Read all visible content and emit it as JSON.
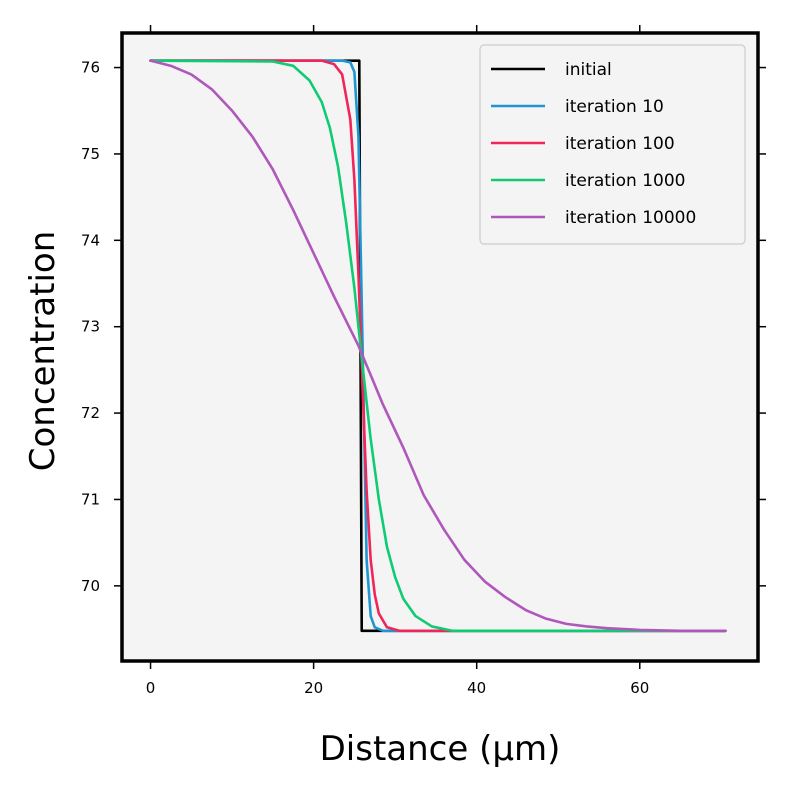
{
  "chart_data": {
    "type": "line",
    "xlabel": "Distance (μm)",
    "ylabel": "Concentration",
    "xlim": [
      -3.5,
      74.5
    ],
    "ylim": [
      69.13,
      76.4
    ],
    "xticks": [
      0,
      20,
      40,
      60
    ],
    "yticks": [
      70,
      71,
      72,
      73,
      74,
      75,
      76
    ],
    "grid": false,
    "legend_position": "top-right",
    "background": "#f4f4f4",
    "series": [
      {
        "name": "initial",
        "color": "#000000",
        "x": [
          0,
          25.5,
          25.6,
          25.9,
          26.0,
          70.5
        ],
        "y": [
          76.08,
          76.08,
          76.08,
          69.48,
          69.48,
          69.48
        ]
      },
      {
        "name": "iteration 10",
        "color": "#1f96d2",
        "x": [
          0,
          23.5,
          24.5,
          25.0,
          25.5,
          26.0,
          26.5,
          27.0,
          27.5,
          28.5,
          70.5
        ],
        "y": [
          76.08,
          76.08,
          76.06,
          75.95,
          75.2,
          72.8,
          70.3,
          69.65,
          69.52,
          69.48,
          69.48
        ]
      },
      {
        "name": "iteration 100",
        "color": "#f0265a",
        "x": [
          0,
          21.0,
          22.5,
          23.5,
          24.5,
          25.0,
          25.5,
          26.0,
          26.5,
          27.0,
          27.5,
          28.0,
          29.0,
          30.5,
          70.5
        ],
        "y": [
          76.08,
          76.08,
          76.04,
          75.92,
          75.4,
          74.7,
          73.6,
          72.3,
          71.1,
          70.3,
          69.9,
          69.68,
          69.52,
          69.48,
          69.48
        ]
      },
      {
        "name": "iteration 1000",
        "color": "#0fcc73",
        "x": [
          0,
          15.0,
          17.5,
          19.5,
          21.0,
          22.0,
          23.0,
          24.0,
          25.0,
          26.0,
          27.0,
          28.0,
          29.0,
          30.0,
          31.0,
          32.5,
          34.5,
          37.0,
          70.5
        ],
        "y": [
          76.08,
          76.07,
          76.02,
          75.85,
          75.6,
          75.3,
          74.85,
          74.2,
          73.45,
          72.55,
          71.7,
          71.0,
          70.45,
          70.1,
          69.85,
          69.65,
          69.53,
          69.48,
          69.48
        ]
      },
      {
        "name": "iteration 10000",
        "color": "#b057bb",
        "x": [
          0,
          2.5,
          5.0,
          7.5,
          10.0,
          12.5,
          15.0,
          17.5,
          20.0,
          22.5,
          25.5,
          28.5,
          31.0,
          33.5,
          36.0,
          38.5,
          41.0,
          43.5,
          46.0,
          48.5,
          51.0,
          53.5,
          56.0,
          60.0,
          65.0,
          70.5
        ],
        "y": [
          76.08,
          76.02,
          75.92,
          75.75,
          75.5,
          75.2,
          74.82,
          74.35,
          73.85,
          73.35,
          72.78,
          72.1,
          71.6,
          71.05,
          70.65,
          70.3,
          70.05,
          69.87,
          69.72,
          69.62,
          69.56,
          69.53,
          69.51,
          69.49,
          69.48,
          69.48
        ]
      }
    ]
  }
}
